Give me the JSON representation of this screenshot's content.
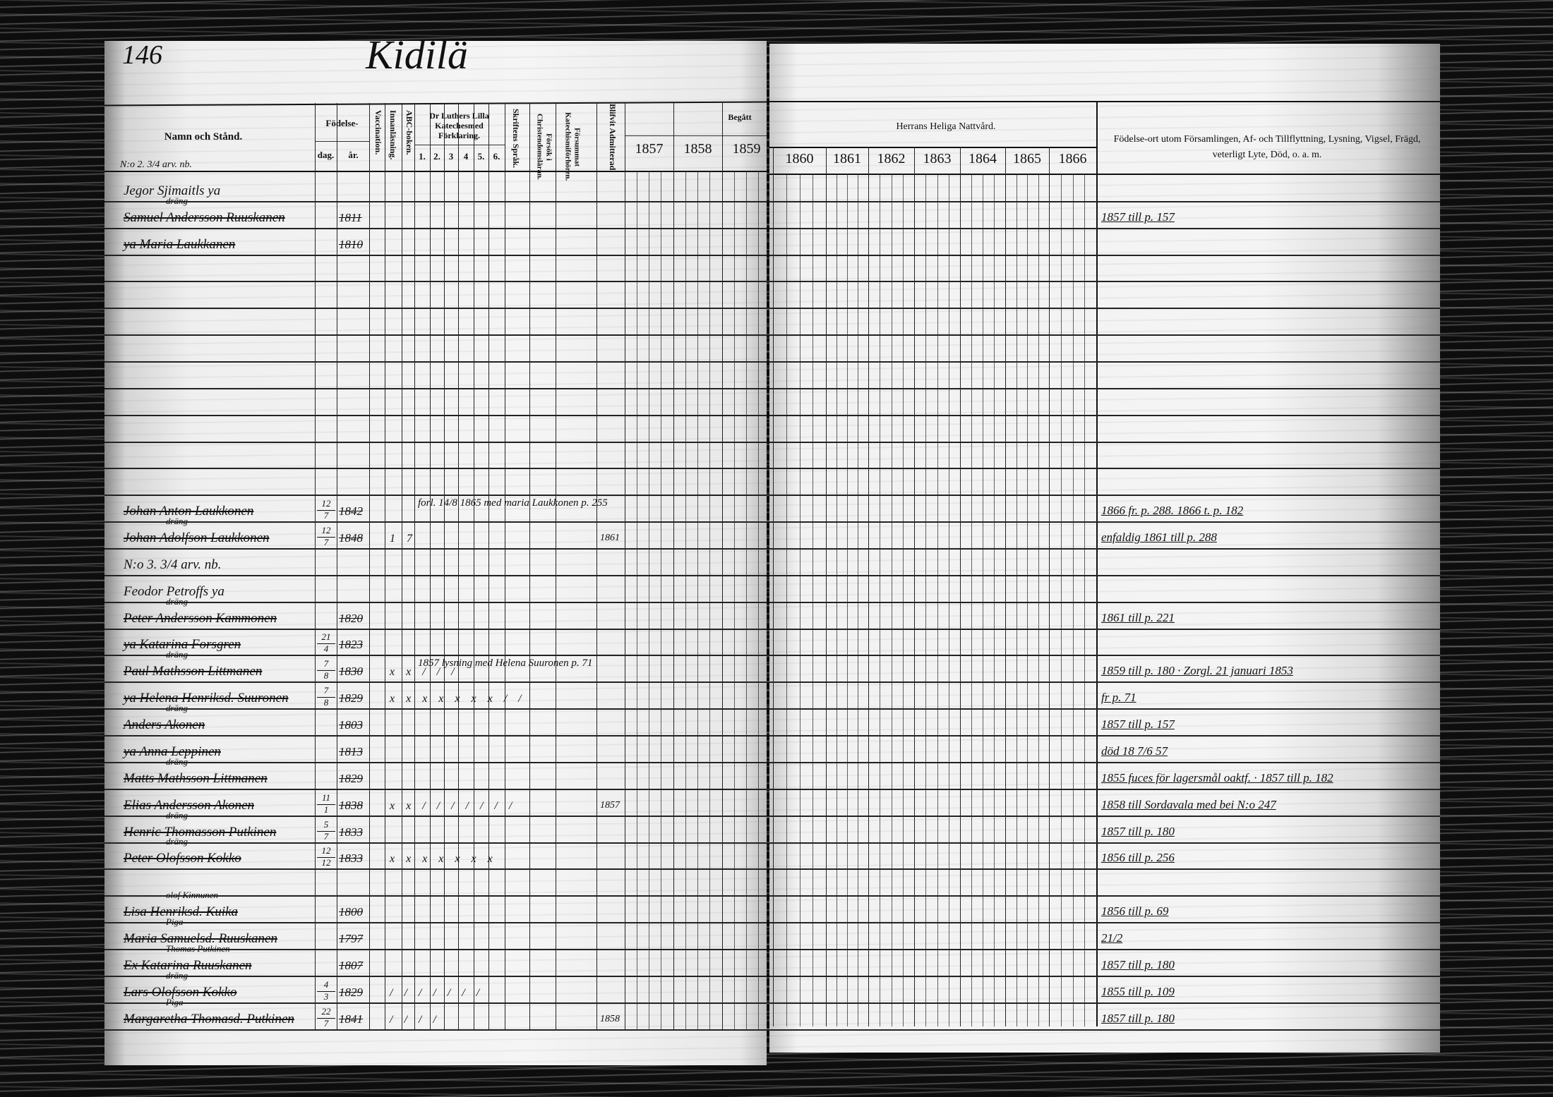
{
  "page_number": "146",
  "village": "Kidilä",
  "headers": {
    "name": "Namn och Stånd.",
    "birth": "Födelse-",
    "birth_day": "dag.",
    "birth_year": "år.",
    "vaccination": "Vaccination.",
    "innanlasning": "Innanläsning.",
    "abc": "ABC-boken.",
    "catechism": "Dr Luthers Lilla Katechesmed Förklaring.",
    "catechism_parts": [
      "1.",
      "2.",
      "3",
      "4",
      "5.",
      "6.",
      ""
    ],
    "scripture": "Skriftens Språk.",
    "christian_doctrine": "Försök i Christendomsläran.",
    "missed_catechism": "Försummat Katechismiförhören.",
    "admitted": "Blifvit Admitterad.",
    "communion_left": "Begått",
    "communion_right": "Herrans Heliga Nattvård.",
    "years_left": [
      "1857",
      "1858",
      "1859"
    ],
    "years_right": [
      "1860",
      "1861",
      "1862",
      "1863",
      "1864",
      "1865",
      "1866"
    ],
    "remarks": "Födelse-ort utom Församlingen, Af- och Tillflyttning, Lysning, Vigsel, Frägd, veterligt Lyte, Död, o. a. m."
  },
  "household_1": "N:o 2. 3/4 arv. nb.",
  "rows": [
    {
      "name": "Jegor Sjimaitls ya",
      "plain": true
    },
    {
      "above": "dräng",
      "name": "Samuel Andersson Ruuskanen",
      "year": "1811",
      "remark": "1857 till p. 157"
    },
    {
      "name": "ya Maria Laukkanen",
      "year": "1810"
    },
    {},
    {},
    {},
    {},
    {},
    {},
    {},
    {},
    {},
    {
      "name": "Johan Anton Laukkonen",
      "day": "12",
      "month": "7",
      "year": "1842",
      "note": "forl. 14/8 1865 med maria Laukkonen p. 255",
      "remark": "1866 fr. p. 288. 1866 t. p. 182"
    },
    {
      "above": "dräng",
      "name": "Johan Adolfson Laukkonen",
      "day": "12",
      "month": "7",
      "year": "1848",
      "marks": "1 7",
      "admitted": "1861",
      "remark": "enfaldig 1861 till p. 288"
    },
    {
      "name": "N:o 3. 3/4 arv. nb.",
      "plain": true
    },
    {
      "name": "Feodor Petroffs ya",
      "plain": true
    },
    {
      "above": "dräng",
      "name": "Peter Andersson Kammonen",
      "year": "1820",
      "remark": "1861 till p. 221"
    },
    {
      "name": "ya Katarina Forsgren",
      "day": "21",
      "month": "4",
      "year": "1823"
    },
    {
      "above": "dräng",
      "name": "Paul Mathsson Littmanen",
      "day": "7",
      "month": "8",
      "year": "1830",
      "marks": "x x / / /",
      "note": "1857 lysning med Helena Suuronen p. 71",
      "remark": "1859 till p. 180 · Zorgl. 21 januari 1853"
    },
    {
      "name": "ya Helena Henriksd. Suuronen",
      "day": "7",
      "month": "8",
      "year": "1829",
      "marks": "x x x x x x x / /",
      "remark": "fr p. 71"
    },
    {
      "above": "dräng",
      "name": "Anders Akonen",
      "year": "1803",
      "remark": "1857 till p. 157"
    },
    {
      "name": "ya Anna Leppinen",
      "year": "1813",
      "remark": "död 18 7/6 57"
    },
    {
      "above": "dräng",
      "name": "Matts Mathsson Littmanen",
      "year": "1829",
      "remark": "1855 fuces för lagersmål oaktf. · 1857 till p. 182"
    },
    {
      "name": "Elias Andersson Akonen",
      "day": "11",
      "month": "1",
      "year": "1838",
      "marks": "x x / / / / / / /",
      "admitted": "1857",
      "remark": "1858 till Sordavala med bei N:o 247"
    },
    {
      "above": "dräng",
      "name": "Henric Thomasson Putkinen",
      "day": "5",
      "month": "7",
      "year": "1833",
      "remark": "1857 till p. 180"
    },
    {
      "above": "dräng",
      "name": "Peter Olofsson Kokko",
      "day": "12",
      "month": "12",
      "year": "1833",
      "marks": "x x x x x x x",
      "remark": "1856 till p. 256"
    },
    {},
    {
      "above": "olof Kinnunen",
      "name": "Lisa Henriksd. Kuika",
      "year": "1800",
      "remark": "1856 till p. 69"
    },
    {
      "above": "Pigа",
      "name": "Maria Samuelsd. Ruuskanen",
      "year": "1797",
      "remark": "21/2"
    },
    {
      "above": "Thomas Putkinen",
      "name": "Ex Katarina Ruuskanen",
      "year": "1807",
      "remark": "1857 till p. 180"
    },
    {
      "above": "dräng",
      "name": "Lars Olofsson Kokko",
      "day": "4",
      "month": "3",
      "year": "1829",
      "marks": "/ / / / / / /",
      "remark": "1855 till p. 109"
    },
    {
      "above": "Piga",
      "name": "Margaretha Thomasd. Putkinen",
      "day": "22",
      "month": "7",
      "year": "1841",
      "marks": "/ / / /",
      "admitted": "1858",
      "remark": "1857 till p. 180"
    }
  ]
}
